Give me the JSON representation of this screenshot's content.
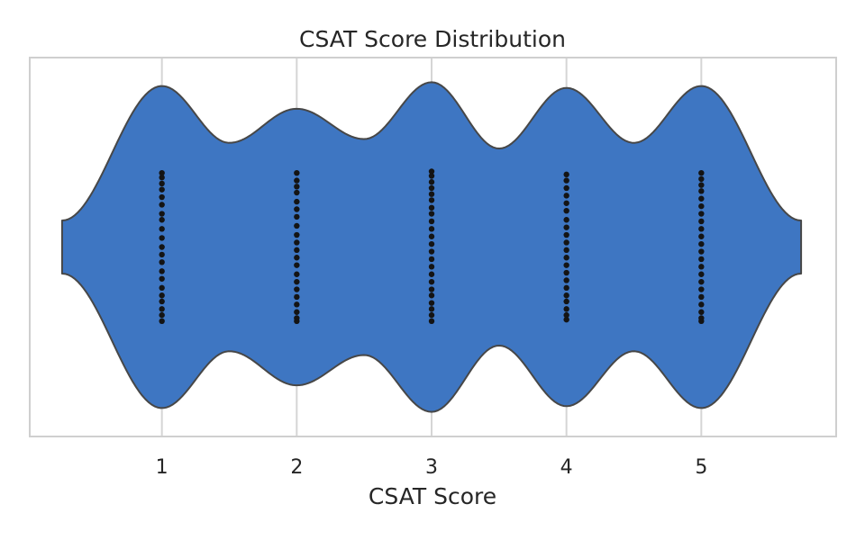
{
  "chart_data": {
    "type": "violin",
    "title": "CSAT Score Distribution",
    "xlabel": "CSAT Score",
    "ylabel": "",
    "xlim": [
      0.02,
      6.0
    ],
    "x_ticks": [
      1,
      2,
      3,
      4,
      5
    ],
    "grid": true,
    "legend": "none",
    "colors": {
      "violin_fill": "#3e76c2",
      "violin_edge": "#474747",
      "points": "#141414",
      "grid": "#d5d5d5",
      "frame": "#cfcfcf"
    },
    "categories": [
      1,
      2,
      3,
      4,
      5
    ],
    "relative_width_at_score": [
      0.85,
      0.73,
      0.87,
      0.84,
      0.85
    ],
    "relative_width_between": [
      0.55,
      0.57,
      0.52,
      0.55
    ],
    "relative_width_tails": [
      0.14,
      0.14
    ],
    "points": [
      {
        "x": 1,
        "values": [
          -0.49,
          -0.46,
          -0.42,
          -0.38,
          -0.33,
          -0.28,
          -0.22,
          -0.18,
          -0.12,
          -0.06,
          0.0,
          0.05,
          0.1,
          0.16,
          0.21,
          0.27,
          0.32,
          0.36,
          0.41,
          0.45,
          0.49
        ]
      },
      {
        "x": 2,
        "values": [
          -0.49,
          -0.44,
          -0.4,
          -0.36,
          -0.3,
          -0.25,
          -0.2,
          -0.14,
          -0.08,
          -0.03,
          0.02,
          0.07,
          0.12,
          0.18,
          0.23,
          0.28,
          0.33,
          0.38,
          0.43,
          0.47,
          0.49
        ]
      },
      {
        "x": 3,
        "values": [
          -0.5,
          -0.47,
          -0.43,
          -0.39,
          -0.35,
          -0.31,
          -0.26,
          -0.22,
          -0.17,
          -0.12,
          -0.07,
          -0.02,
          0.03,
          0.08,
          0.13,
          0.18,
          0.23,
          0.28,
          0.32,
          0.37,
          0.41,
          0.45,
          0.49
        ]
      },
      {
        "x": 4,
        "values": [
          -0.48,
          -0.44,
          -0.39,
          -0.34,
          -0.29,
          -0.24,
          -0.18,
          -0.13,
          -0.08,
          -0.03,
          0.02,
          0.07,
          0.12,
          0.17,
          0.22,
          0.27,
          0.32,
          0.36,
          0.41,
          0.45,
          0.48
        ]
      },
      {
        "x": 5,
        "values": [
          -0.49,
          -0.45,
          -0.41,
          -0.37,
          -0.32,
          -0.27,
          -0.22,
          -0.17,
          -0.12,
          -0.07,
          -0.02,
          0.03,
          0.08,
          0.13,
          0.18,
          0.23,
          0.28,
          0.33,
          0.38,
          0.43,
          0.47,
          0.49
        ]
      }
    ]
  }
}
